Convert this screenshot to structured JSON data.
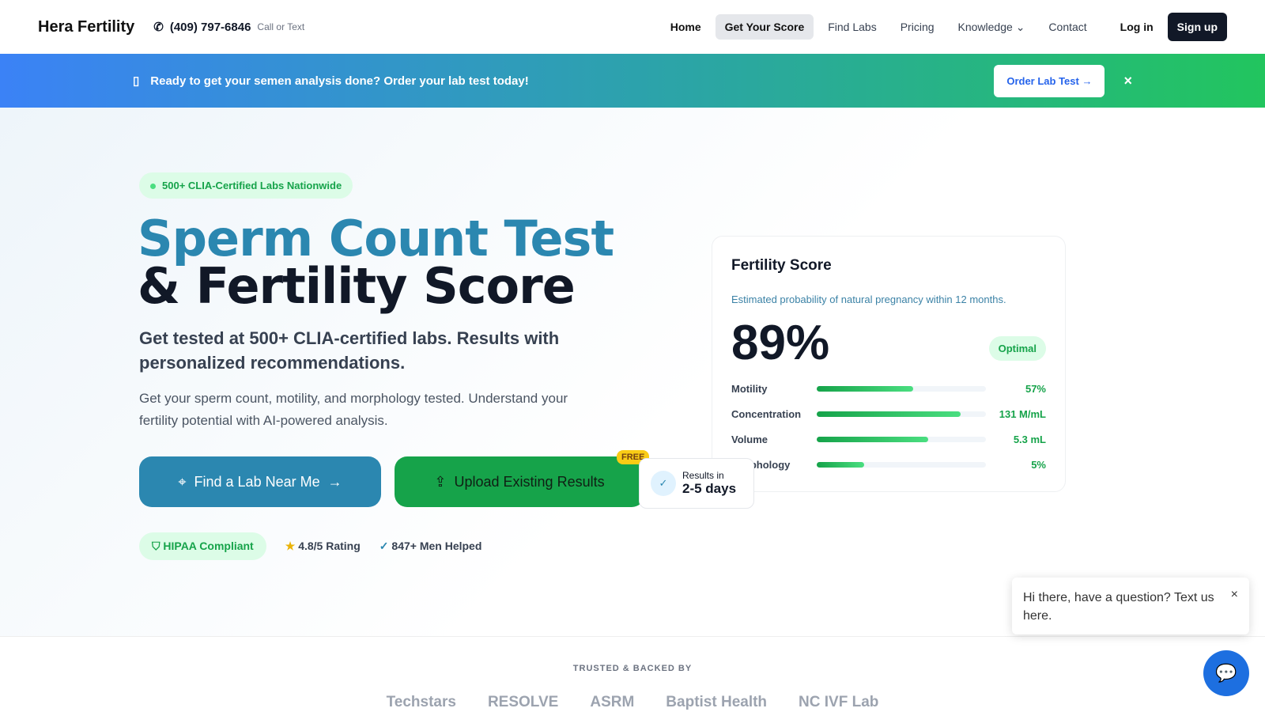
{
  "nav": {
    "brand": "Hera Fertility",
    "phone": "(409) 797-6846",
    "phone_note": "Call or Text",
    "links": [
      "Home",
      "Get Your Score",
      "Find Labs",
      "Pricing",
      "Knowledge",
      "Contact"
    ],
    "login": "Log in",
    "signup": "Sign up"
  },
  "banner": {
    "text": "Ready to get your semen analysis done? Order your lab test today!",
    "button": "Order Lab Test",
    "close": "×"
  },
  "hero": {
    "badge": "500+ CLIA-Certified Labs Nationwide",
    "title_1": "Sperm Count Test",
    "title_2": "& Fertility Score",
    "subtitle": "Get tested at 500+ CLIA-certified labs. Results with personalized recommendations.",
    "description": "Get your sperm count, motility, and morphology tested. Understand your fertility potential with AI-powered analysis.",
    "primary_button": "Find a Lab Near Me",
    "secondary_button": "Upload Existing Results",
    "free_tag": "FREE",
    "results_label": "Results in",
    "results_value": "2-5 days",
    "trust": [
      "HIPAA Compliant",
      "4.8/5 Rating",
      "847+ Men Helped"
    ]
  },
  "score_card": {
    "title": "Fertility Score",
    "explanation": "Estimated probability of natural pregnancy within 12 months.",
    "score": "89%",
    "status": "Optimal",
    "metrics": [
      {
        "label": "Motility",
        "value": "57%",
        "fill": 57
      },
      {
        "label": "Concentration",
        "value": "131 M/mL",
        "fill": 85
      },
      {
        "label": "Volume",
        "value": "5.3 mL",
        "fill": 66
      },
      {
        "label": "Morphology",
        "value": "5%",
        "fill": 28
      }
    ]
  },
  "trusted": {
    "title": "TRUSTED & BACKED BY",
    "logos": [
      "Techstars",
      "RESOLVE",
      "ASRM",
      "Baptist Health",
      "NC IVF Lab"
    ]
  },
  "chat": {
    "message": "Hi there, have a question? Text us here.",
    "close": "×"
  }
}
